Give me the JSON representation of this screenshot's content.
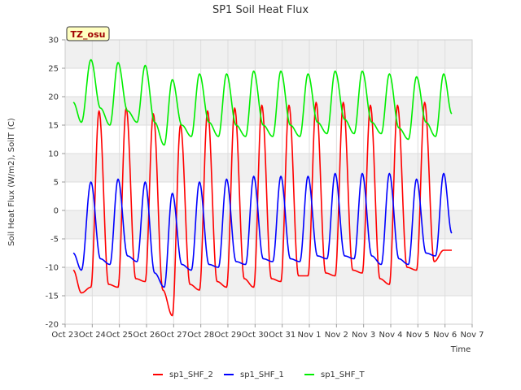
{
  "chart_data": {
    "type": "line",
    "title": "SP1 Soil Heat Flux",
    "xlabel": "Time",
    "ylabel": "Soil Heat Flux (W/m2), SoilT (C)",
    "badge": "TZ_osu",
    "ylim": [
      -20,
      30
    ],
    "yticks": [
      -20,
      -15,
      -10,
      -5,
      0,
      5,
      10,
      15,
      20,
      25,
      30
    ],
    "xlim": [
      0,
      15
    ],
    "xticks": [
      0,
      1,
      2,
      3,
      4,
      5,
      6,
      7,
      8,
      9,
      10,
      11,
      12,
      13,
      14,
      15
    ],
    "xtick_labels": [
      "Oct 23",
      "Oct 24",
      "Oct 25",
      "Oct 26",
      "Oct 27",
      "Oct 28",
      "Oct 29",
      "Oct 30",
      "Oct 31",
      "Nov 1",
      "Nov 2",
      "Nov 3",
      "Nov 4",
      "Nov 5",
      "Nov 6",
      "Nov 7"
    ],
    "grid": true,
    "legend_position": "bottom",
    "series": [
      {
        "name": "sp1_SHF_2",
        "color": "#ff0000",
        "x": [
          0.3,
          0.6,
          0.95,
          1.25,
          1.6,
          1.95,
          2.25,
          2.6,
          2.95,
          3.25,
          3.6,
          3.95,
          4.25,
          4.6,
          4.95,
          5.25,
          5.6,
          5.95,
          6.25,
          6.6,
          6.95,
          7.25,
          7.6,
          7.95,
          8.25,
          8.6,
          8.95,
          9.25,
          9.6,
          9.95,
          10.25,
          10.6,
          10.95,
          11.25,
          11.6,
          11.95,
          12.25,
          12.6,
          12.95,
          13.25,
          13.6,
          13.95,
          14.25
        ],
        "y": [
          -10.5,
          -14.5,
          -13.5,
          17.5,
          -13.0,
          -13.5,
          18.0,
          -12.0,
          -12.5,
          17.0,
          -14.0,
          -18.5,
          15.0,
          -13.0,
          -14.0,
          17.5,
          -12.5,
          -13.5,
          18.0,
          -12.0,
          -13.5,
          18.5,
          -12.0,
          -12.5,
          18.5,
          -11.5,
          -11.5,
          19.0,
          -11.0,
          -11.5,
          19.0,
          -10.5,
          -11.0,
          18.5,
          -12.0,
          -13.0,
          18.5,
          -10.0,
          -10.5,
          19.0,
          -9.0,
          -7.0,
          -7.0
        ]
      },
      {
        "name": "sp1_SHF_1",
        "color": "#0000ff",
        "x": [
          0.3,
          0.6,
          0.95,
          1.3,
          1.65,
          1.95,
          2.3,
          2.65,
          2.95,
          3.3,
          3.65,
          3.95,
          4.3,
          4.65,
          4.95,
          5.3,
          5.65,
          5.95,
          6.3,
          6.65,
          6.95,
          7.3,
          7.65,
          7.95,
          8.3,
          8.65,
          8.95,
          9.3,
          9.65,
          9.95,
          10.3,
          10.65,
          10.95,
          11.3,
          11.65,
          11.95,
          12.3,
          12.65,
          12.95,
          13.3,
          13.65,
          13.95,
          14.25
        ],
        "y": [
          -7.5,
          -10.5,
          5.0,
          -8.5,
          -9.5,
          5.5,
          -8.0,
          -9.0,
          5.0,
          -11.0,
          -13.5,
          3.0,
          -9.5,
          -10.5,
          5.0,
          -9.5,
          -10.0,
          5.5,
          -9.0,
          -9.5,
          6.0,
          -8.5,
          -9.0,
          6.0,
          -8.5,
          -9.0,
          6.0,
          -8.0,
          -8.5,
          6.5,
          -8.0,
          -8.5,
          6.5,
          -8.0,
          -9.5,
          6.5,
          -8.5,
          -9.5,
          5.5,
          -7.5,
          -8.0,
          6.5,
          -4.0
        ]
      },
      {
        "name": "sp1_SHF_T",
        "color": "#00ee00",
        "x": [
          0.3,
          0.6,
          0.95,
          1.3,
          1.65,
          1.95,
          2.3,
          2.65,
          2.95,
          3.3,
          3.65,
          3.95,
          4.3,
          4.65,
          4.95,
          5.3,
          5.65,
          5.95,
          6.3,
          6.65,
          6.95,
          7.3,
          7.65,
          7.95,
          8.3,
          8.65,
          8.95,
          9.3,
          9.65,
          9.95,
          10.3,
          10.65,
          10.95,
          11.3,
          11.65,
          11.95,
          12.3,
          12.65,
          12.95,
          13.3,
          13.65,
          13.95,
          14.25
        ],
        "y": [
          19.0,
          15.5,
          26.5,
          18.0,
          15.0,
          26.0,
          17.5,
          15.5,
          25.5,
          15.5,
          11.5,
          23.0,
          15.0,
          13.0,
          24.0,
          15.5,
          13.0,
          24.0,
          15.0,
          13.0,
          24.5,
          15.0,
          13.0,
          24.5,
          15.0,
          13.0,
          24.0,
          15.5,
          13.5,
          24.5,
          16.0,
          13.5,
          24.5,
          15.5,
          13.5,
          24.0,
          14.5,
          12.5,
          23.5,
          15.5,
          13.0,
          24.0,
          17.0
        ]
      }
    ]
  }
}
